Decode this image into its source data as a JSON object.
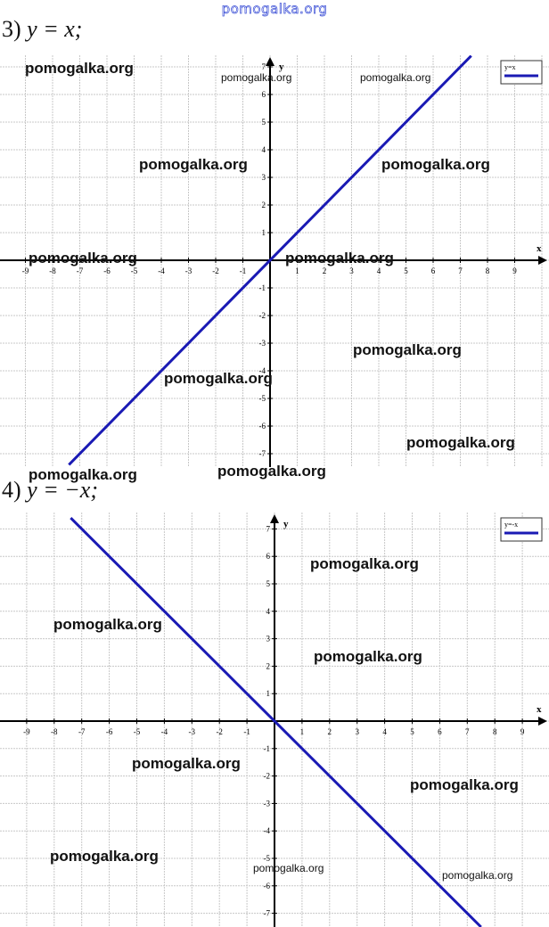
{
  "site_watermark": "pomogalka.org",
  "sections": [
    {
      "label": "3) ",
      "equation": "y = x;"
    },
    {
      "label": "4) ",
      "equation": "y = −x;"
    }
  ],
  "chart_data": [
    {
      "type": "line",
      "xlabel": "x",
      "ylabel": "y",
      "xlim": [
        -9.9,
        10
      ],
      "ylim": [
        -7.4,
        7.4
      ],
      "xticks": [
        -9,
        -8,
        -7,
        -6,
        -5,
        -4,
        -3,
        -2,
        -1,
        1,
        2,
        3,
        4,
        5,
        6,
        7,
        8,
        9
      ],
      "yticks": [
        -7,
        -6,
        -5,
        -4,
        -3,
        -2,
        -1,
        1,
        2,
        3,
        4,
        5,
        6,
        7
      ],
      "grid": true,
      "legend": "top-right",
      "series": [
        {
          "name": "y=x",
          "color": "#1a1ab4",
          "x": [
            -7.4,
            7.4
          ],
          "y": [
            -7.4,
            7.4
          ]
        }
      ]
    },
    {
      "type": "line",
      "xlabel": "x",
      "ylabel": "y",
      "xlim": [
        -9.9,
        10
      ],
      "ylim": [
        -7.5,
        7.5
      ],
      "xticks": [
        -9,
        -8,
        -7,
        -6,
        -5,
        -4,
        -3,
        -2,
        -1,
        1,
        2,
        3,
        4,
        5,
        6,
        7,
        8,
        9
      ],
      "yticks": [
        -7,
        -6,
        -5,
        -4,
        -3,
        -2,
        -1,
        1,
        2,
        3,
        4,
        5,
        6,
        7
      ],
      "grid": true,
      "legend": "top-right",
      "series": [
        {
          "name": "y=-x",
          "color": "#1a1ab4",
          "x": [
            -7.4,
            7.5
          ],
          "y": [
            7.4,
            -7.5
          ]
        }
      ]
    }
  ]
}
